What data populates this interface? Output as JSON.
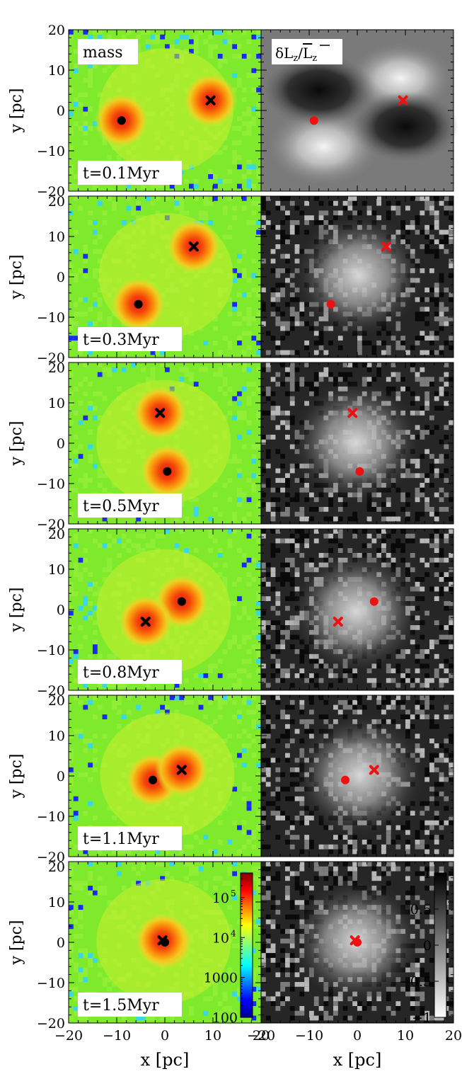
{
  "figure": {
    "panel_label_mass": "mass",
    "panel_label_dl": "δL",
    "panel_label_dl_sub": "z",
    "panel_label_dl_den": "L",
    "panel_label_dl_den_sub": "z"
  },
  "chart_data": {
    "type": "heatmap",
    "xlabel": "x [pc]",
    "ylabel": "y [pc]",
    "xlim": [
      -20,
      20
    ],
    "ylim": [
      -20,
      20
    ],
    "x_ticks": [
      -20,
      -10,
      0,
      10,
      20
    ],
    "y_ticks": [
      -20,
      -10,
      0,
      10,
      20
    ],
    "x_tick_labels": [
      "−20",
      "−10",
      "0",
      "10",
      "20"
    ],
    "y_tick_labels": [
      "−20",
      "−10",
      "0",
      "10",
      "20"
    ],
    "colorbar_mass": {
      "ticks": [
        100,
        1000,
        10000,
        100000
      ],
      "labels": [
        "100",
        "1000",
        "10",
        "10"
      ],
      "label_exponents": [
        "",
        "",
        "4",
        "5"
      ],
      "scale": "log",
      "colormap": "jet"
    },
    "colorbar_dl": {
      "ticks": [
        1,
        0.5,
        0,
        -0.5,
        -1
      ],
      "labels": [
        "1",
        "0.5",
        "0",
        "−0.5",
        "−1"
      ],
      "colormap": "gray"
    },
    "marker_color_mass": "#000000",
    "marker_color_dl": "#ee1111",
    "rows": [
      {
        "time": "t=0.1Myr",
        "circle": [
          -9,
          -2.5
        ],
        "cross": [
          9.5,
          2.5
        ]
      },
      {
        "time": "t=0.3Myr",
        "circle": [
          -5.5,
          -6.8
        ],
        "cross": [
          6,
          7.5
        ]
      },
      {
        "time": "t=0.5Myr",
        "circle": [
          0.5,
          -7
        ],
        "cross": [
          -1,
          7.5
        ]
      },
      {
        "time": "t=0.8Myr",
        "circle": [
          3.5,
          2
        ],
        "cross": [
          -4,
          -3
        ]
      },
      {
        "time": "t=1.1Myr",
        "circle": [
          -2.5,
          -1
        ],
        "cross": [
          3.5,
          1.5
        ]
      },
      {
        "time": "t=1.5Myr",
        "circle": [
          0,
          0
        ],
        "cross": [
          -0.5,
          0.5
        ]
      }
    ]
  }
}
